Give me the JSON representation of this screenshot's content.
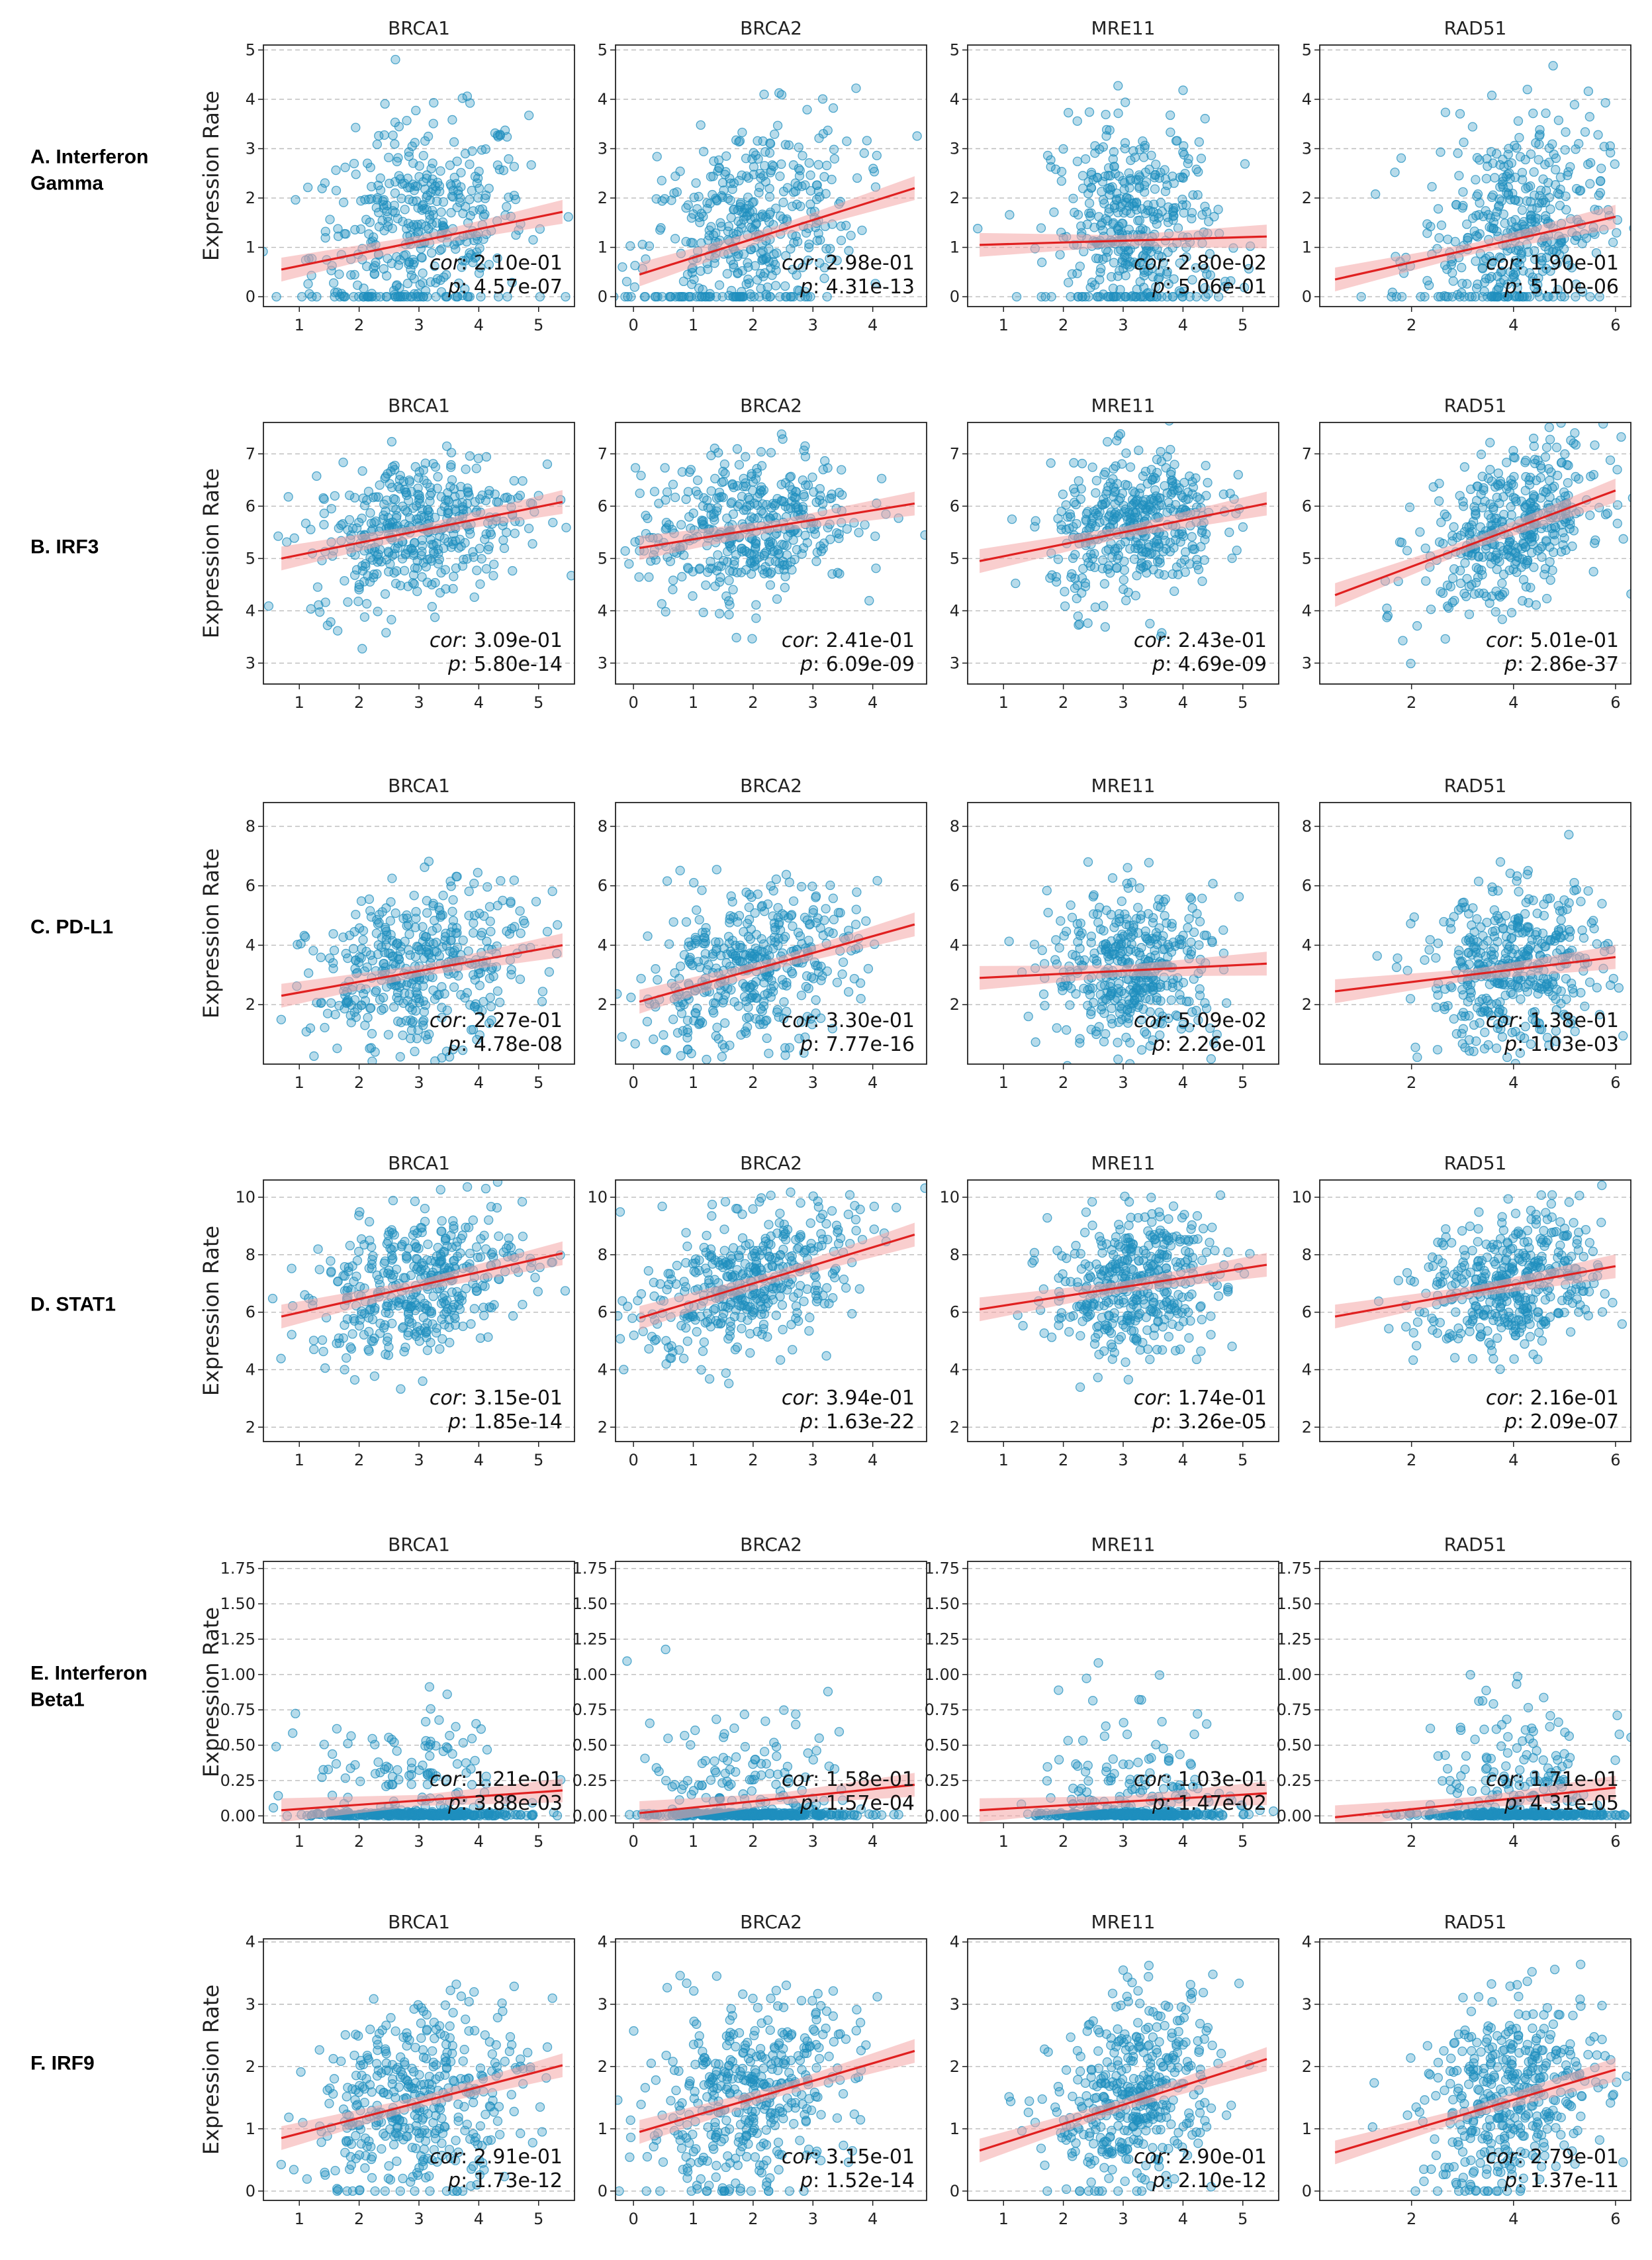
{
  "figure": {
    "ylabel": "Expression Rate",
    "columns": [
      "BRCA1",
      "BRCA2",
      "MRE11",
      "RAD51"
    ],
    "stat_labels": {
      "cor": "cor",
      "p": "p"
    }
  },
  "colors": {
    "points": "#1f8fbf",
    "fit": "#e02020",
    "band": "#f4a6a6",
    "grid": "#bbbbbb"
  },
  "x_axes": {
    "BRCA1": {
      "min": 0.4,
      "max": 5.6,
      "ticks": [
        1,
        2,
        3,
        4,
        5
      ],
      "cx": 3.0,
      "sx": 0.9
    },
    "BRCA2": {
      "min": -0.3,
      "max": 4.9,
      "ticks": [
        0,
        1,
        2,
        3,
        4
      ],
      "cx": 1.9,
      "sx": 0.9
    },
    "MRE11": {
      "min": 0.4,
      "max": 5.6,
      "ticks": [
        1,
        2,
        3,
        4,
        5
      ],
      "cx": 3.2,
      "sx": 0.7
    },
    "RAD51": {
      "min": 0.2,
      "max": 6.3,
      "ticks": [
        2,
        4,
        6
      ],
      "cx": 4.0,
      "sx": 0.9
    }
  },
  "rows": [
    {
      "id": "A",
      "label_lines": [
        "A. Interferon",
        "Gamma"
      ],
      "ylim": [
        -0.2,
        5.1
      ],
      "yticks": [
        0,
        1,
        2,
        3,
        4,
        5
      ],
      "ytick_labels": [
        "0",
        "1",
        "2",
        "3",
        "4",
        "5"
      ],
      "cy": 1.3,
      "sy": 1.1,
      "panels": [
        {
          "gene": "BRCA1",
          "fit": [
            [
              0.7,
              0.55
            ],
            [
              5.4,
              1.72
            ]
          ],
          "cor": "2.10e-01",
          "p": "4.57e-07"
        },
        {
          "gene": "BRCA2",
          "fit": [
            [
              0.1,
              0.45
            ],
            [
              4.7,
              2.2
            ]
          ],
          "cor": "2.98e-01",
          "p": "4.31e-13"
        },
        {
          "gene": "MRE11",
          "fit": [
            [
              0.6,
              1.05
            ],
            [
              5.4,
              1.22
            ]
          ],
          "cor": "2.80e-02",
          "p": "5.06e-01"
        },
        {
          "gene": "RAD51",
          "fit": [
            [
              0.5,
              0.35
            ],
            [
              6.0,
              1.62
            ]
          ],
          "cor": "1.90e-01",
          "p": "5.10e-06"
        }
      ]
    },
    {
      "id": "B",
      "label_lines": [
        "B. IRF3"
      ],
      "ylim": [
        2.6,
        7.6
      ],
      "yticks": [
        3,
        4,
        5,
        6,
        7
      ],
      "ytick_labels": [
        "3",
        "4",
        "5",
        "6",
        "7"
      ],
      "cy": 5.6,
      "sy": 0.7,
      "panels": [
        {
          "gene": "BRCA1",
          "fit": [
            [
              0.7,
              5.0
            ],
            [
              5.4,
              6.08
            ]
          ],
          "cor": "3.09e-01",
          "p": "5.80e-14"
        },
        {
          "gene": "BRCA2",
          "fit": [
            [
              0.1,
              5.2
            ],
            [
              4.7,
              6.05
            ]
          ],
          "cor": "2.41e-01",
          "p": "6.09e-09"
        },
        {
          "gene": "MRE11",
          "fit": [
            [
              0.6,
              4.95
            ],
            [
              5.4,
              6.05
            ]
          ],
          "cor": "2.43e-01",
          "p": "4.69e-09"
        },
        {
          "gene": "RAD51",
          "fit": [
            [
              0.5,
              4.3
            ],
            [
              6.0,
              6.3
            ]
          ],
          "cor": "5.01e-01",
          "p": "2.86e-37"
        }
      ]
    },
    {
      "id": "C",
      "label_lines": [
        "C. PD-L1"
      ],
      "ylim": [
        0.0,
        8.8
      ],
      "yticks": [
        2,
        4,
        6,
        8
      ],
      "ytick_labels": [
        "2",
        "4",
        "6",
        "8"
      ],
      "cy": 3.2,
      "sy": 1.3,
      "panels": [
        {
          "gene": "BRCA1",
          "fit": [
            [
              0.7,
              2.3
            ],
            [
              5.4,
              4.0
            ]
          ],
          "cor": "2.27e-01",
          "p": "4.78e-08"
        },
        {
          "gene": "BRCA2",
          "fit": [
            [
              0.1,
              2.1
            ],
            [
              4.7,
              4.7
            ]
          ],
          "cor": "3.30e-01",
          "p": "7.77e-16"
        },
        {
          "gene": "MRE11",
          "fit": [
            [
              0.6,
              2.9
            ],
            [
              5.4,
              3.38
            ]
          ],
          "cor": "5.09e-02",
          "p": "2.26e-01"
        },
        {
          "gene": "RAD51",
          "fit": [
            [
              0.5,
              2.45
            ],
            [
              6.0,
              3.6
            ]
          ],
          "cor": "1.38e-01",
          "p": "1.03e-03"
        }
      ]
    },
    {
      "id": "D",
      "label_lines": [
        "D. STAT1"
      ],
      "ylim": [
        1.5,
        10.6
      ],
      "yticks": [
        2,
        4,
        6,
        8,
        10
      ],
      "ytick_labels": [
        "2",
        "4",
        "6",
        "8",
        "10"
      ],
      "cy": 7.0,
      "sy": 1.2,
      "panels": [
        {
          "gene": "BRCA1",
          "fit": [
            [
              0.7,
              5.85
            ],
            [
              5.4,
              8.05
            ]
          ],
          "cor": "3.15e-01",
          "p": "1.85e-14"
        },
        {
          "gene": "BRCA2",
          "fit": [
            [
              0.1,
              5.8
            ],
            [
              4.7,
              8.7
            ]
          ],
          "cor": "3.94e-01",
          "p": "1.63e-22"
        },
        {
          "gene": "MRE11",
          "fit": [
            [
              0.6,
              6.1
            ],
            [
              5.4,
              7.65
            ]
          ],
          "cor": "1.74e-01",
          "p": "3.26e-05"
        },
        {
          "gene": "RAD51",
          "fit": [
            [
              0.5,
              5.85
            ],
            [
              6.0,
              7.6
            ]
          ],
          "cor": "2.16e-01",
          "p": "2.09e-07"
        }
      ]
    },
    {
      "id": "E",
      "label_lines": [
        "E. Interferon",
        "Beta1"
      ],
      "ylim": [
        -0.05,
        1.8
      ],
      "yticks": [
        0.0,
        0.25,
        0.5,
        0.75,
        1.0,
        1.25,
        1.5,
        1.75
      ],
      "ytick_labels": [
        "0.00",
        "0.25",
        "0.50",
        "0.75",
        "1.00",
        "1.25",
        "1.50",
        "1.75"
      ],
      "cy": 0.0,
      "sy": 0.25,
      "panels": [
        {
          "gene": "BRCA1",
          "fit": [
            [
              0.7,
              0.04
            ],
            [
              5.4,
              0.18
            ]
          ],
          "cor": "1.21e-01",
          "p": "3.88e-03"
        },
        {
          "gene": "BRCA2",
          "fit": [
            [
              0.1,
              0.02
            ],
            [
              4.7,
              0.22
            ]
          ],
          "cor": "1.58e-01",
          "p": "1.57e-04"
        },
        {
          "gene": "MRE11",
          "fit": [
            [
              0.6,
              0.04
            ],
            [
              5.4,
              0.16
            ]
          ],
          "cor": "1.03e-01",
          "p": "1.47e-02"
        },
        {
          "gene": "RAD51",
          "fit": [
            [
              0.5,
              -0.01
            ],
            [
              6.0,
              0.2
            ]
          ],
          "cor": "1.71e-01",
          "p": "4.31e-05"
        }
      ]
    },
    {
      "id": "F",
      "label_lines": [
        "F. IRF9"
      ],
      "ylim": [
        -0.15,
        4.05
      ],
      "yticks": [
        0,
        1,
        2,
        3,
        4
      ],
      "ytick_labels": [
        "0",
        "1",
        "2",
        "3",
        "4"
      ],
      "cy": 1.5,
      "sy": 0.75,
      "panels": [
        {
          "gene": "BRCA1",
          "fit": [
            [
              0.7,
              0.85
            ],
            [
              5.4,
              2.02
            ]
          ],
          "cor": "2.91e-01",
          "p": "1.73e-12"
        },
        {
          "gene": "BRCA2",
          "fit": [
            [
              0.1,
              0.95
            ],
            [
              4.7,
              2.25
            ]
          ],
          "cor": "3.15e-01",
          "p": "1.52e-14"
        },
        {
          "gene": "MRE11",
          "fit": [
            [
              0.6,
              0.65
            ],
            [
              5.4,
              2.12
            ]
          ],
          "cor": "2.90e-01",
          "p": "2.10e-12"
        },
        {
          "gene": "RAD51",
          "fit": [
            [
              0.5,
              0.62
            ],
            [
              6.0,
              1.95
            ]
          ],
          "cor": "2.79e-01",
          "p": "1.37e-11"
        }
      ]
    }
  ],
  "chart_data": {
    "type": "scatter",
    "title": "",
    "ylabel": "Expression Rate",
    "xlabels": [
      "BRCA1",
      "BRCA2",
      "MRE11",
      "RAD51"
    ],
    "rows": [
      "A. Interferon Gamma",
      "B. IRF3",
      "C. PD-L1",
      "D. STAT1",
      "E. Interferon Beta1",
      "F. IRF9"
    ],
    "n_points_per_panel": 420,
    "grid": "horizontal dashed"
  }
}
